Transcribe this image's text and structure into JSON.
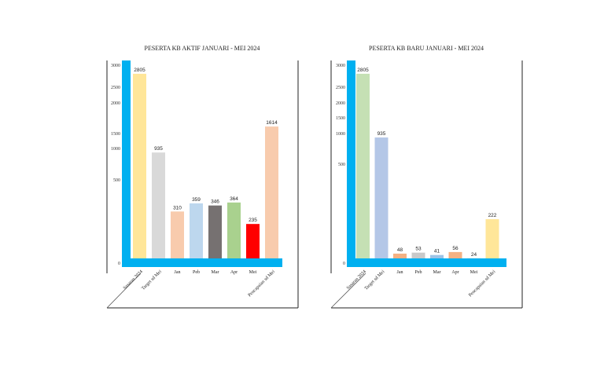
{
  "chart_data": [
    {
      "type": "bar",
      "title": "PESERTA KB AKTIF JANUARI - MEI 2024",
      "y_ticks": [
        "0",
        "500",
        "1000",
        "1500",
        "2000",
        "2500",
        "3000"
      ],
      "categories": [
        "Sasaran 2024",
        "Target sd Mei",
        "Jan",
        "Peb",
        "Mar",
        "Apr",
        "Mei",
        "Pencapaian sd Mei"
      ],
      "values": [
        2805,
        935,
        310,
        359,
        346,
        364,
        235,
        1614
      ],
      "value_labels": [
        "2805",
        "935",
        "310",
        "359",
        "346",
        "364",
        "235",
        "1614"
      ],
      "colors": [
        "#ffe699",
        "#d9d9d9",
        "#f8cbad",
        "#bdd7ee",
        "#767171",
        "#a9d18e",
        "#ff0000",
        "#f8cbad"
      ],
      "axis_color": "#00b0f0"
    },
    {
      "type": "bar",
      "title": "PESERTA KB BARU JANUARI - MEI 2024",
      "y_ticks": [
        "0",
        "500",
        "1000",
        "1500",
        "2000",
        "2500",
        "3000"
      ],
      "categories": [
        "Sasaran 2024",
        "Target sd Mei",
        "Jan",
        "Peb",
        "Mar",
        "Apr",
        "Mei",
        "Pencapaian sd Mei"
      ],
      "values": [
        2805,
        935,
        48,
        53,
        41,
        56,
        24,
        222
      ],
      "value_labels": [
        "2805",
        "935",
        "48",
        "53",
        "41",
        "56",
        "24",
        "222"
      ],
      "colors": [
        "#c5e0b4",
        "#b4c7e7",
        "#f4b183",
        "#c9c9c9",
        "#9dc3e6",
        "#f4b183",
        "#ff0000",
        "#ffe699"
      ],
      "axis_color": "#00b0f0"
    }
  ]
}
